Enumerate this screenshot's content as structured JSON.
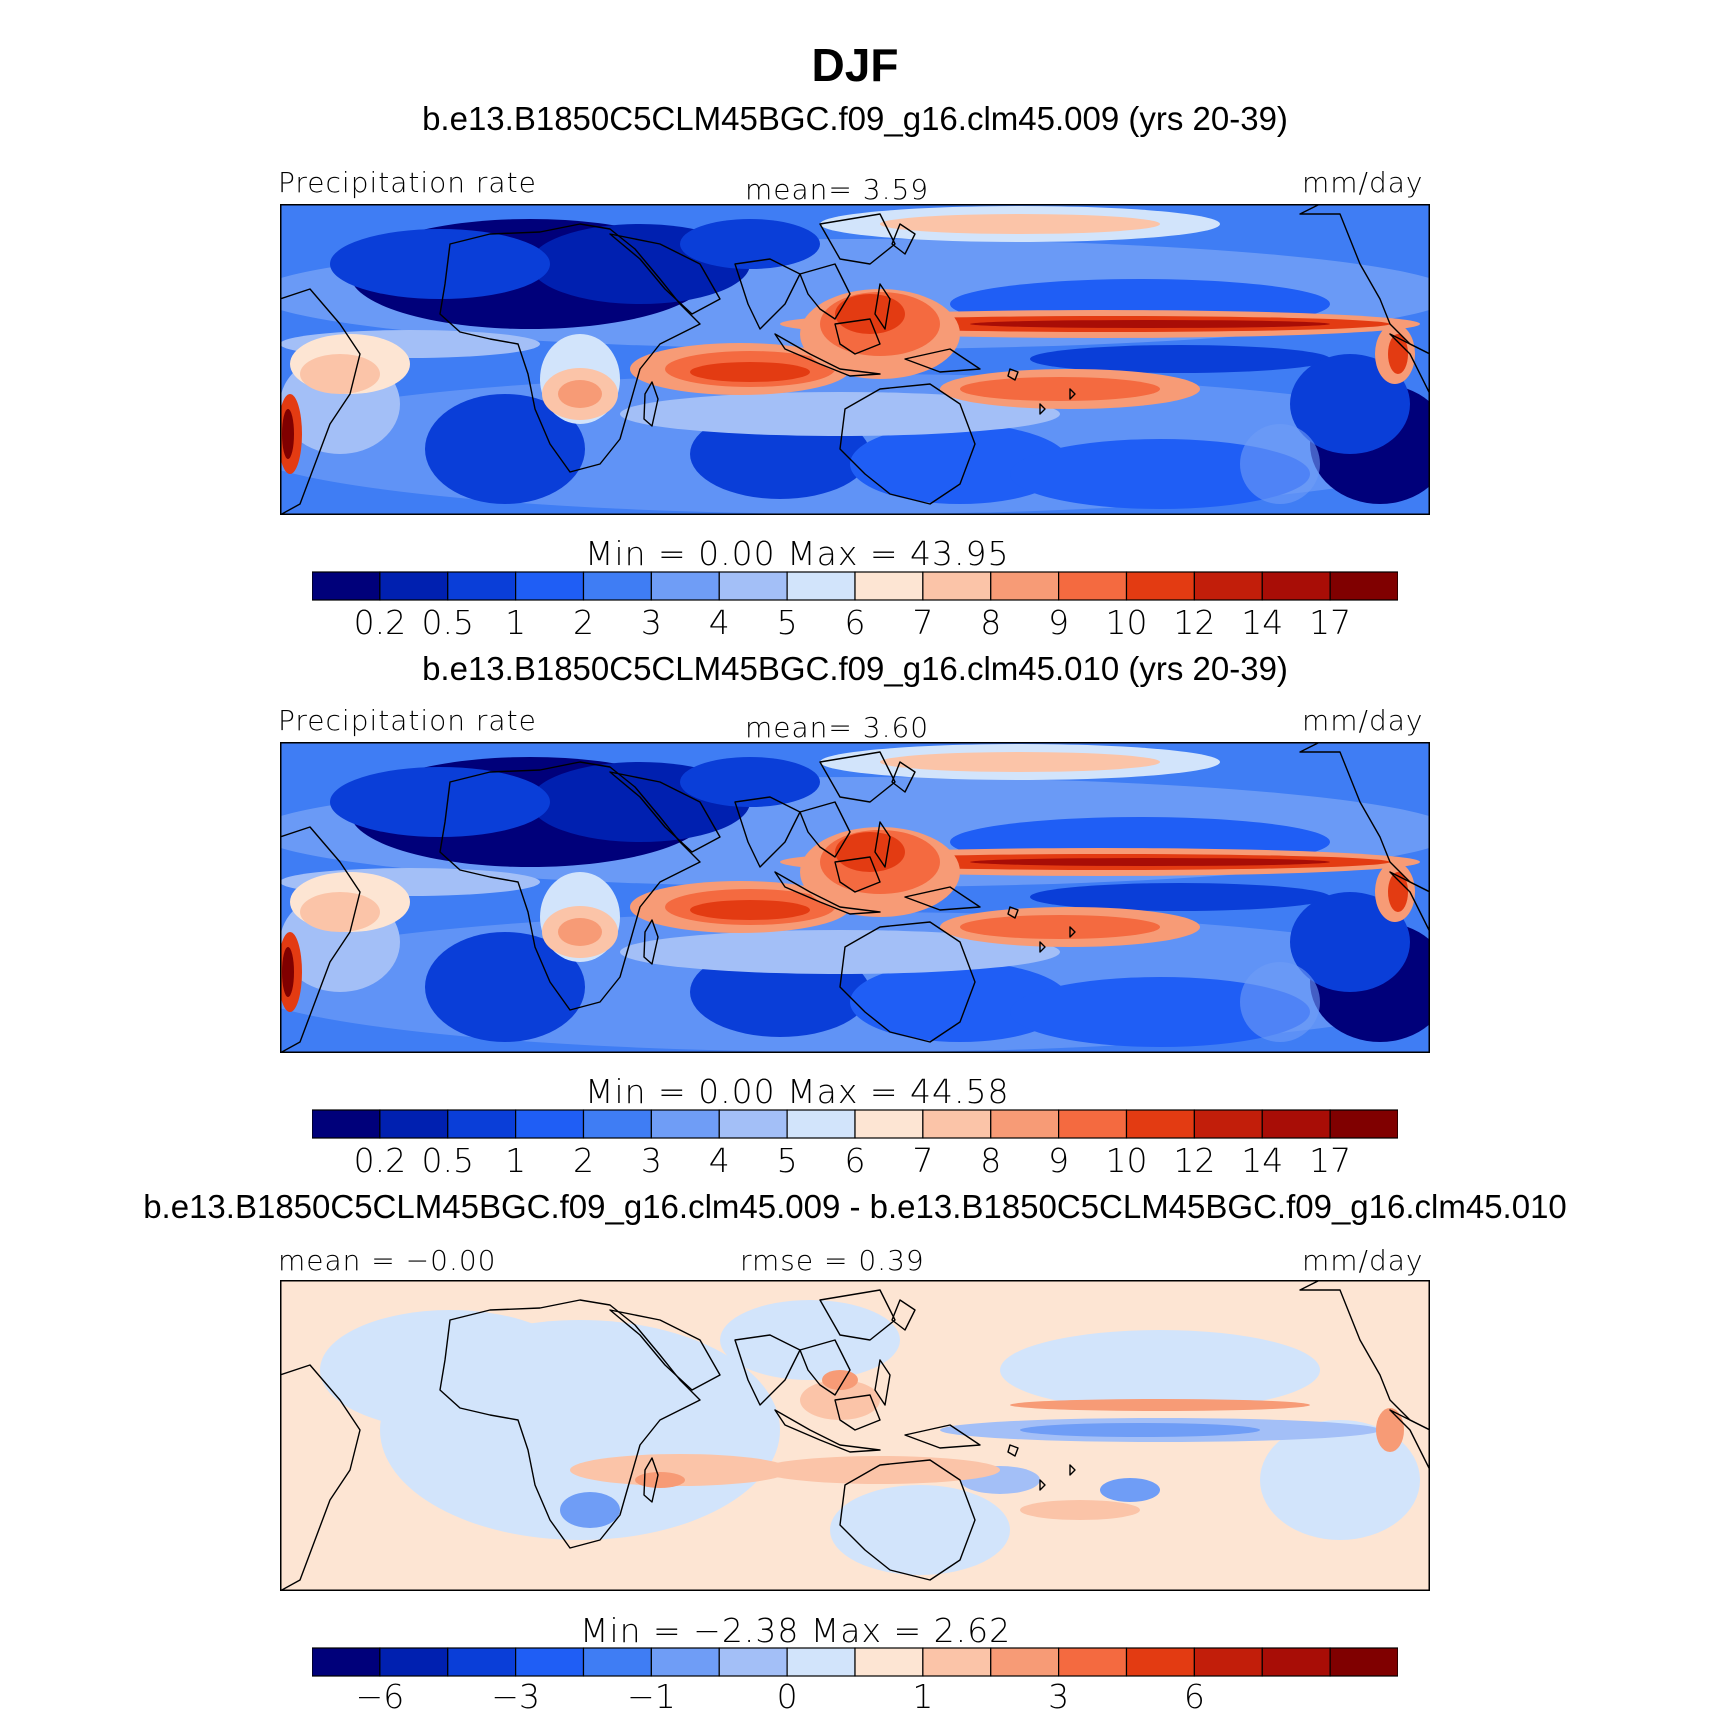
{
  "title": "DJF",
  "units": "mm/day",
  "panels": [
    {
      "case_title": "b.e13.B1850C5CLM45BGC.f09_g16.clm45.009 (yrs 20-39)",
      "left_header": "Precipitation rate",
      "center_header": "mean=    3.59",
      "right_header": "mm/day",
      "min_max": "Min =    0.00  Max =   43.95",
      "variant": "abs",
      "colorbar_labels": [
        "0.2",
        "0.5",
        "1",
        "2",
        "3",
        "4",
        "5",
        "6",
        "7",
        "8",
        "9",
        "10",
        "12",
        "14",
        "17"
      ]
    },
    {
      "case_title": "b.e13.B1850C5CLM45BGC.f09_g16.clm45.010 (yrs 20-39)",
      "left_header": "Precipitation rate",
      "center_header": "mean=    3.60",
      "right_header": "mm/day",
      "min_max": "Min =    0.00  Max =   44.58",
      "variant": "abs",
      "colorbar_labels": [
        "0.2",
        "0.5",
        "1",
        "2",
        "3",
        "4",
        "5",
        "6",
        "7",
        "8",
        "9",
        "10",
        "12",
        "14",
        "17"
      ]
    },
    {
      "case_title": "b.e13.B1850C5CLM45BGC.f09_g16.clm45.009 - b.e13.B1850C5CLM45BGC.f09_g16.clm45.010",
      "left_header": "mean =  −0.00",
      "center_header": "rmse =    0.39",
      "right_header": "mm/day",
      "min_max": "Min =  −2.38  Max =    2.62",
      "variant": "diff",
      "colorbar_labels": [
        "−6",
        "",
        "−3",
        "",
        "−1",
        "",
        "0",
        "",
        "1",
        "",
        "3",
        "",
        "6",
        "",
        ""
      ]
    }
  ],
  "colorbar_colors": [
    "#00007a",
    "#0020b0",
    "#0a3ed8",
    "#1f5ef5",
    "#3f7df4",
    "#6f9df6",
    "#a3bff7",
    "#d2e4fb",
    "#fde5d3",
    "#fbc4a8",
    "#f79b76",
    "#f46a40",
    "#e33b12",
    "#c21e0a",
    "#a80d06",
    "#800000"
  ],
  "chart_data": {
    "type": "heatmap",
    "season": "DJF",
    "units": "mm/day",
    "precip_levels": [
      0.2,
      0.5,
      1,
      2,
      3,
      4,
      5,
      6,
      7,
      8,
      9,
      10,
      12,
      14,
      17
    ],
    "diff_levels": [
      -6,
      -3,
      -1,
      0,
      1,
      3,
      6
    ],
    "panels": [
      {
        "case": "b.e13.B1850C5CLM45BGC.f09_g16.clm45.009",
        "years": "20-39",
        "mean": 3.59,
        "min": 0.0,
        "max": 43.95
      },
      {
        "case": "b.e13.B1850C5CLM45BGC.f09_g16.clm45.010",
        "years": "20-39",
        "mean": 3.6,
        "min": 0.0,
        "max": 44.58
      },
      {
        "case": "009 - 010",
        "mean": -0.0,
        "rmse": 0.39,
        "min": -2.38,
        "max": 2.62
      }
    ]
  }
}
